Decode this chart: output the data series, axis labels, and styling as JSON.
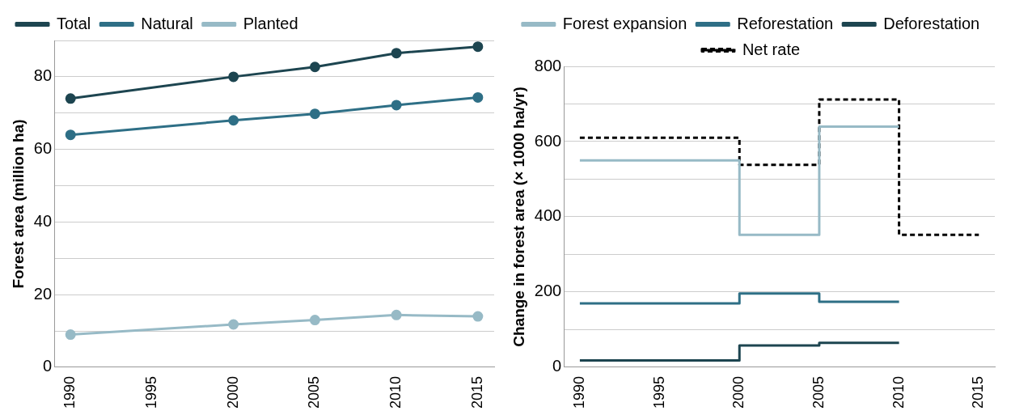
{
  "chart_data": [
    {
      "type": "line",
      "ylabel": "Forest area (million ha)",
      "x": [
        1990,
        2000,
        2005,
        2010,
        2015
      ],
      "xlim": [
        1989,
        2016
      ],
      "xticks": [
        1990,
        1995,
        2000,
        2005,
        2010,
        2015
      ],
      "ylim": [
        0,
        90
      ],
      "yticks": [
        0,
        {
          "value": 10,
          "label": null
        },
        20,
        {
          "value": 30,
          "label": null
        },
        40,
        {
          "value": 50,
          "label": null
        },
        60,
        {
          "value": 70,
          "label": null
        },
        80,
        {
          "value": 90,
          "label": null
        }
      ],
      "grid": "y",
      "legend": "top left",
      "marker": "circle",
      "series": [
        {
          "name": "Total",
          "color": "#1d4550",
          "values": [
            74,
            80,
            82.7,
            86.5,
            88.3
          ]
        },
        {
          "name": "Natural",
          "color": "#2e6f86",
          "values": [
            64,
            68,
            69.8,
            72.2,
            74.3
          ]
        },
        {
          "name": "Planted",
          "color": "#97bac6",
          "values": [
            9,
            11.8,
            13,
            14.4,
            14
          ]
        }
      ]
    },
    {
      "type": "step",
      "ylabel": "Change in forest area (× 1000 ha/yr)",
      "x": [
        1990,
        2000,
        2005,
        2010
      ],
      "xlim": [
        1989,
        2016
      ],
      "xticks": [
        1990,
        1995,
        2000,
        2005,
        2010,
        2015
      ],
      "ylim": [
        0,
        800
      ],
      "yticks": [
        0,
        {
          "value": 100,
          "label": null
        },
        200,
        {
          "value": 300,
          "label": null
        },
        400,
        {
          "value": 500,
          "label": null
        },
        600,
        {
          "value": 700,
          "label": null
        },
        800
      ],
      "grid": "y",
      "legend": "top",
      "series": [
        {
          "name": "Forest expansion",
          "color": "#97bac6",
          "values": [
            550,
            352,
            640,
            640
          ]
        },
        {
          "name": "Reforestation",
          "color": "#2e6f86",
          "values": [
            170,
            196,
            174,
            174
          ]
        },
        {
          "name": "Deforestation",
          "color": "#1d4550",
          "values": [
            18,
            58,
            65,
            65
          ]
        },
        {
          "name": "Net rate",
          "color": "#000000",
          "line_style": "dashed",
          "x": [
            1990,
            2000,
            2005,
            2010,
            2015
          ],
          "values": [
            610,
            538,
            712,
            352,
            352
          ]
        }
      ]
    }
  ]
}
